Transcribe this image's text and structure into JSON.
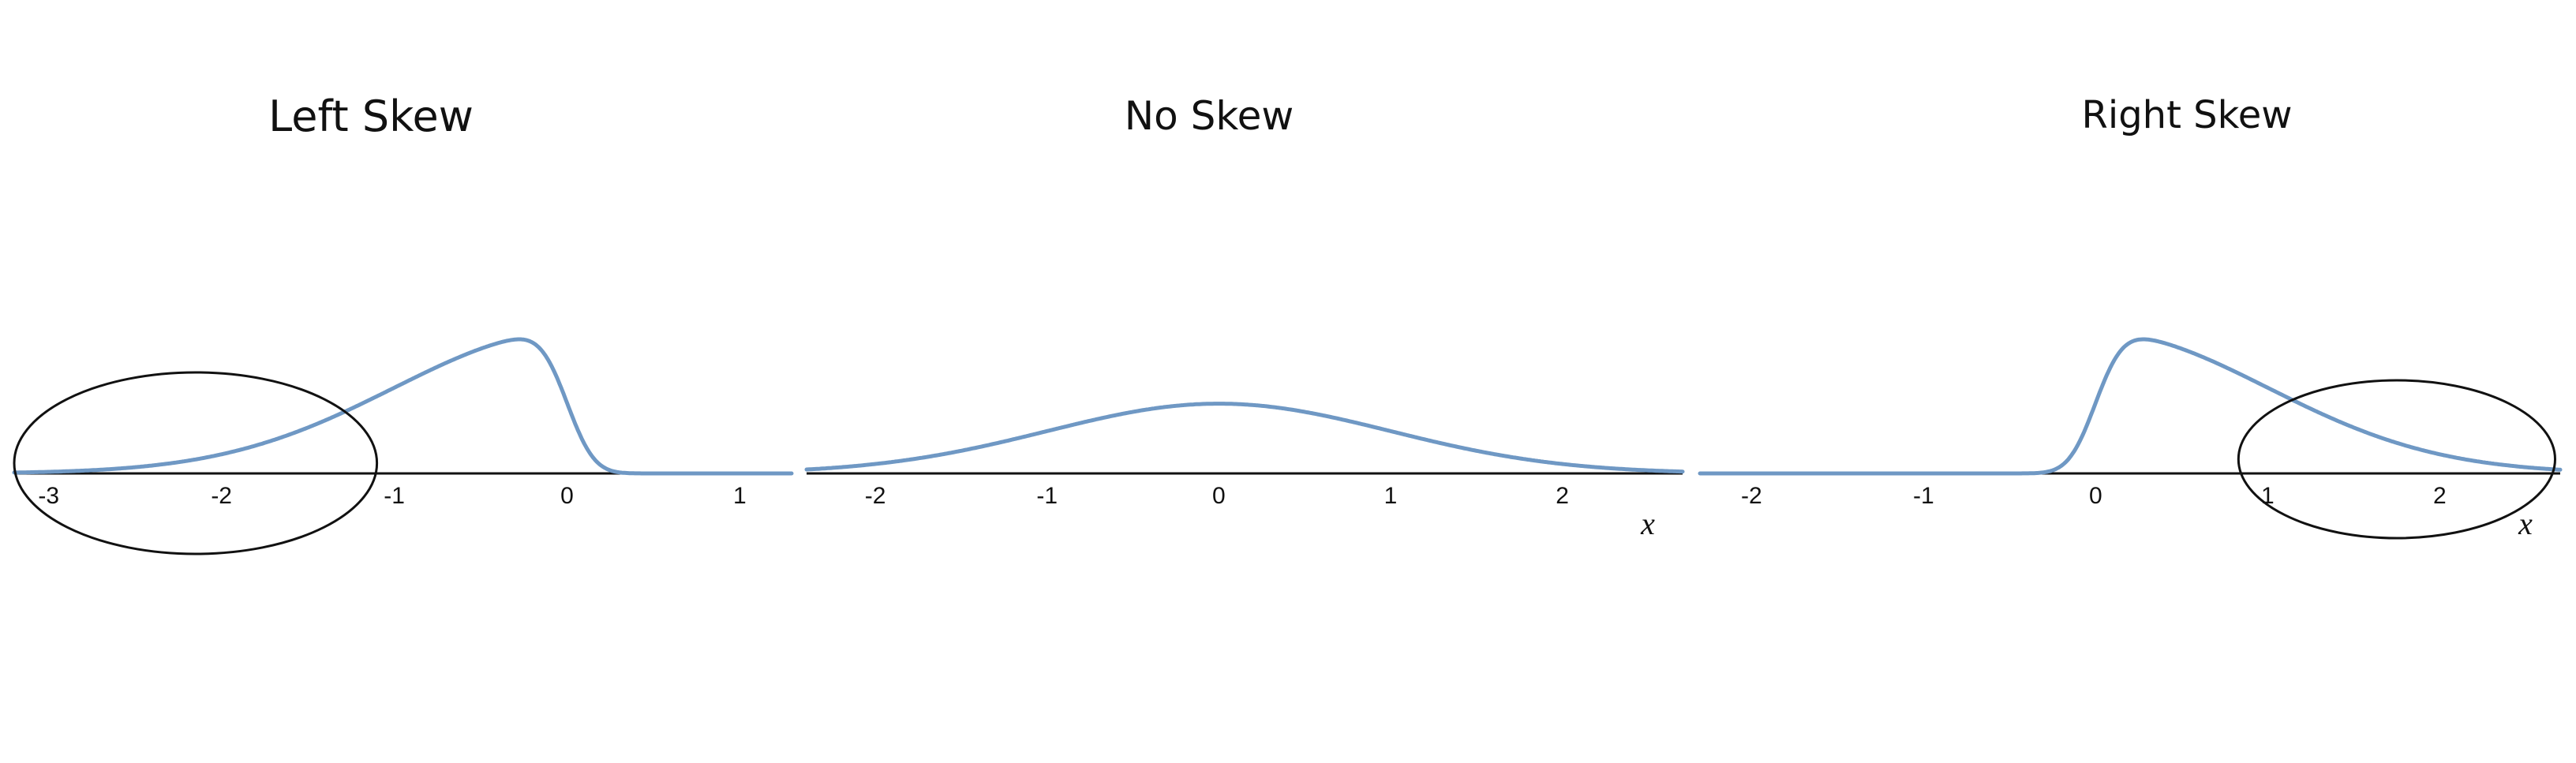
{
  "colors": {
    "curve": "#6f98c4",
    "axis": "#111111",
    "highlight": "#111111",
    "background": "#ffffff"
  },
  "chart_data": [
    {
      "type": "line",
      "title": "Left Skew",
      "xlabel": "",
      "ylabel": "",
      "skew_shape": -8,
      "xlim": [
        -3.2,
        1.3
      ],
      "ylim": [
        0,
        1
      ],
      "grid": false,
      "x_ticks": [
        "-3",
        "-2",
        "-1",
        "0",
        "1"
      ],
      "x_tick_values": [
        -3,
        -2,
        -1,
        0,
        1
      ],
      "highlight_ellipse": {
        "center_x": -2.15,
        "rx": 1.05
      }
    },
    {
      "type": "line",
      "title": "No Skew",
      "xlabel": "x",
      "ylabel": "",
      "skew_shape": 0,
      "xlim": [
        -2.4,
        2.7
      ],
      "ylim": [
        0,
        1
      ],
      "grid": false,
      "x_ticks": [
        "-2",
        "-1",
        "0",
        "1",
        "2"
      ],
      "x_tick_values": [
        -2,
        -1,
        0,
        1,
        2
      ]
    },
    {
      "type": "line",
      "title": "Right Skew",
      "xlabel": "x",
      "ylabel": "",
      "skew_shape": 8,
      "xlim": [
        -2.3,
        2.7
      ],
      "ylim": [
        0,
        1
      ],
      "grid": false,
      "x_ticks": [
        "-2",
        "-1",
        "0",
        "1",
        "2"
      ],
      "x_tick_values": [
        -2,
        -1,
        0,
        1,
        2
      ],
      "highlight_ellipse": {
        "center_x": 1.75,
        "rx": 0.92
      }
    }
  ]
}
